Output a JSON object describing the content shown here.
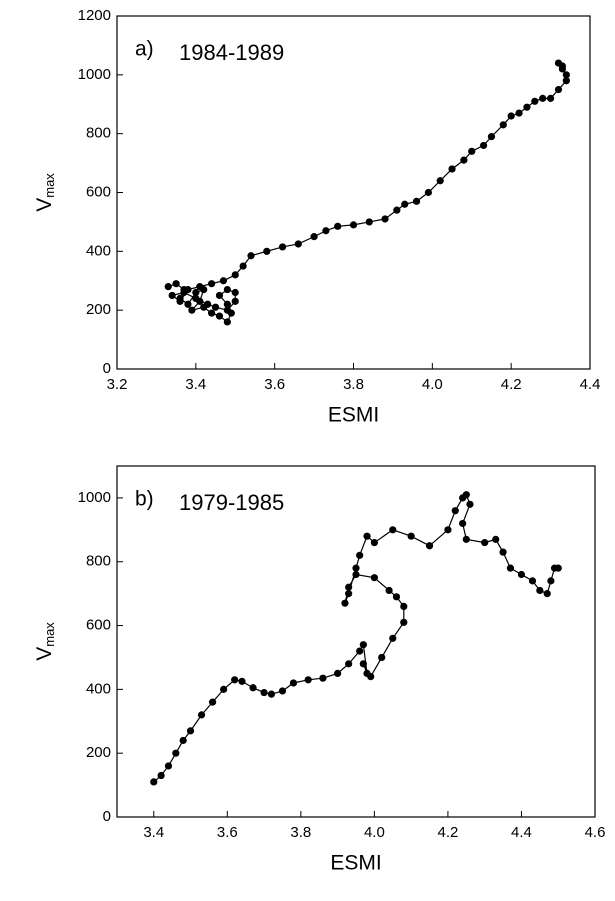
{
  "chart_data": [
    {
      "type": "line",
      "panel_label": "a)",
      "annotation": "1984-1989",
      "xlabel": "ESMI",
      "ylabel": "V",
      "ylabel_sub": "max",
      "xlim": [
        3.2,
        4.4
      ],
      "ylim": [
        0,
        1200
      ],
      "xticks": [
        3.2,
        3.4,
        3.6,
        3.8,
        {
          "value": 4.0,
          "label": "4.0"
        },
        4.2,
        4.4
      ],
      "yticks": [
        0,
        200,
        400,
        600,
        800,
        1000,
        1200
      ],
      "series": [
        {
          "color": "#000000",
          "x": [
            3.33,
            3.35,
            3.37,
            3.36,
            3.38,
            3.4,
            3.42,
            3.41,
            3.39,
            3.42,
            3.44,
            3.46,
            3.48,
            3.49,
            3.48,
            3.46,
            3.48,
            3.5,
            3.5,
            3.48,
            3.45,
            3.43,
            3.4,
            3.37,
            3.34,
            3.36,
            3.38,
            3.41,
            3.44,
            3.47,
            3.5,
            3.52,
            3.54,
            3.58,
            3.62,
            3.66,
            3.7,
            3.73,
            3.76,
            3.8,
            3.84,
            3.88,
            3.91,
            3.93,
            3.96,
            3.99,
            4.02,
            4.05,
            4.08,
            4.1,
            4.13,
            4.15,
            4.18,
            4.2,
            4.22,
            4.24,
            4.26,
            4.28,
            4.3,
            4.32,
            4.34,
            4.34,
            4.33,
            4.32,
            4.33
          ],
          "values": [
            280,
            290,
            270,
            240,
            220,
            260,
            270,
            230,
            200,
            210,
            190,
            180,
            160,
            190,
            220,
            250,
            270,
            260,
            230,
            200,
            210,
            220,
            240,
            260,
            250,
            230,
            270,
            280,
            290,
            300,
            320,
            350,
            385,
            400,
            415,
            425,
            450,
            470,
            485,
            490,
            500,
            510,
            540,
            560,
            570,
            600,
            640,
            680,
            710,
            740,
            760,
            790,
            830,
            860,
            870,
            890,
            910,
            920,
            920,
            950,
            980,
            1000,
            1020,
            1040,
            1030
          ]
        }
      ]
    },
    {
      "type": "line",
      "panel_label": "b)",
      "annotation": "1979-1985",
      "xlabel": "ESMI",
      "ylabel": "V",
      "ylabel_sub": "max",
      "xlim": [
        3.3,
        4.6
      ],
      "ylim": [
        0,
        1100
      ],
      "xticks": [
        3.4,
        3.6,
        3.8,
        {
          "value": 4.0,
          "label": "4.0"
        },
        4.2,
        4.4,
        4.6
      ],
      "yticks": [
        0,
        200,
        400,
        600,
        800,
        1000
      ],
      "series": [
        {
          "color": "#000000",
          "x": [
            3.4,
            3.42,
            3.44,
            3.46,
            3.48,
            3.5,
            3.53,
            3.56,
            3.59,
            3.62,
            3.64,
            3.67,
            3.7,
            3.72,
            3.75,
            3.78,
            3.82,
            3.86,
            3.9,
            3.93,
            3.96,
            3.97,
            3.98,
            3.97,
            3.99,
            4.02,
            4.05,
            4.08,
            4.08,
            4.06,
            4.04,
            4.0,
            3.95,
            3.93,
            3.92,
            3.93,
            3.95,
            3.96,
            3.98,
            4.0,
            4.05,
            4.1,
            4.15,
            4.2,
            4.22,
            4.24,
            4.25,
            4.26,
            4.24,
            4.25,
            4.3,
            4.33,
            4.35,
            4.37,
            4.4,
            4.43,
            4.45,
            4.47,
            4.48,
            4.49,
            4.5
          ],
          "values": [
            110,
            130,
            160,
            200,
            240,
            270,
            320,
            360,
            400,
            430,
            425,
            405,
            390,
            385,
            395,
            420,
            430,
            435,
            450,
            480,
            520,
            540,
            450,
            480,
            440,
            500,
            560,
            610,
            660,
            690,
            710,
            750,
            760,
            720,
            670,
            700,
            780,
            820,
            880,
            860,
            900,
            880,
            850,
            900,
            960,
            1000,
            1010,
            980,
            920,
            870,
            860,
            870,
            830,
            780,
            760,
            740,
            710,
            700,
            740,
            780,
            780
          ]
        }
      ]
    }
  ]
}
